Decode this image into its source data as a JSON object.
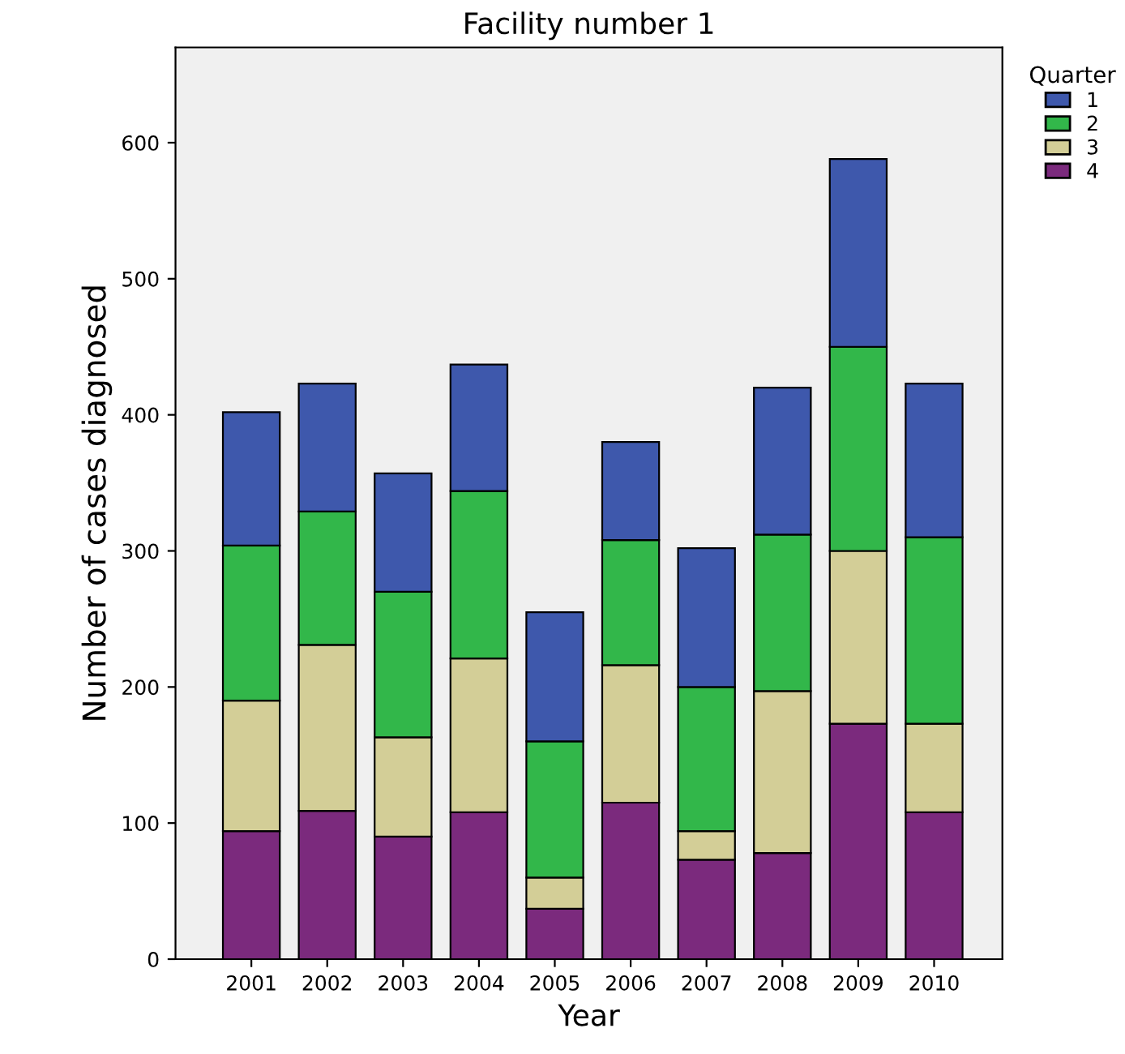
{
  "chart_data": {
    "type": "bar",
    "stacked": true,
    "title": "Facility number 1",
    "xlabel": "Year",
    "ylabel": "Number of cases diagnosed",
    "legend_title": "Quarter",
    "legend": "top right",
    "categories": [
      "2001",
      "2002",
      "2003",
      "2004",
      "2005",
      "2006",
      "2007",
      "2008",
      "2009",
      "2010"
    ],
    "series": [
      {
        "name": "4",
        "color": "#7b2a7d",
        "values": [
          94,
          109,
          90,
          108,
          37,
          115,
          73,
          78,
          173,
          108
        ]
      },
      {
        "name": "3",
        "color": "#d3ce97",
        "values": [
          96,
          122,
          73,
          113,
          23,
          101,
          21,
          119,
          127,
          65
        ]
      },
      {
        "name": "2",
        "color": "#32b74a",
        "values": [
          114,
          98,
          107,
          123,
          100,
          92,
          106,
          115,
          150,
          137
        ]
      },
      {
        "name": "1",
        "color": "#3e58ac",
        "values": [
          98,
          94,
          87,
          93,
          95,
          72,
          102,
          108,
          138,
          113
        ]
      }
    ],
    "ylim": [
      0,
      670
    ],
    "yticks": [
      0,
      100,
      200,
      300,
      400,
      500,
      600
    ],
    "grid": false
  }
}
